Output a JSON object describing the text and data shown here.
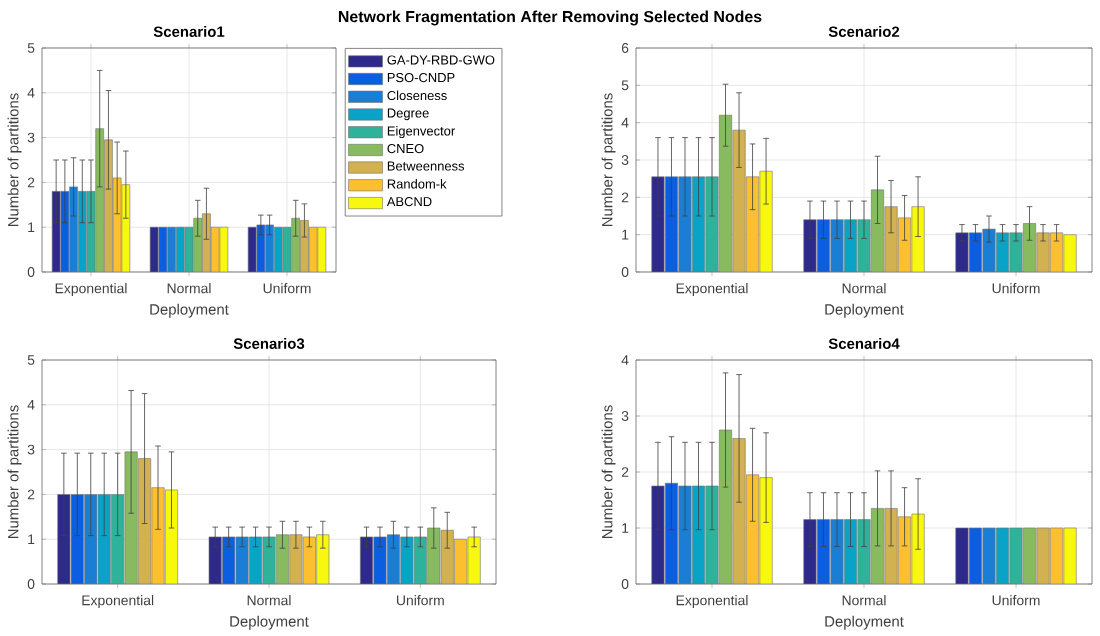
{
  "chart_data": [
    {
      "type": "bar",
      "title": "Scenario1",
      "xlabel": "Deployment",
      "ylabel": "Number of partitions",
      "annotations": [
        "Network Fragmentation After Removing Selected Nodes"
      ],
      "categories": [
        "Exponential",
        "Normal",
        "Uniform"
      ],
      "ylim": [
        0,
        5
      ],
      "yticks": [
        0,
        1,
        2,
        3,
        4,
        5
      ],
      "grid": true,
      "legend": "right",
      "series": [
        {
          "name": "GA-DY-RBD-GWO",
          "color": "#2e2a8c",
          "values": [
            1.8,
            1.0,
            1.0
          ],
          "errors": [
            0.7,
            null,
            null
          ]
        },
        {
          "name": "PSO-CNDP",
          "color": "#0b5ee0",
          "values": [
            1.8,
            1.0,
            1.05
          ],
          "errors": [
            0.7,
            null,
            0.22
          ]
        },
        {
          "name": "Closeness",
          "color": "#1a7fd4",
          "values": [
            1.9,
            1.0,
            1.05
          ],
          "errors": [
            0.65,
            null,
            0.22
          ]
        },
        {
          "name": "Degree",
          "color": "#0aa3c8",
          "values": [
            1.8,
            1.0,
            1.0
          ],
          "errors": [
            0.7,
            null,
            null
          ]
        },
        {
          "name": "Eigenvector",
          "color": "#2eb39a",
          "values": [
            1.8,
            1.0,
            1.0
          ],
          "errors": [
            0.7,
            null,
            null
          ]
        },
        {
          "name": "CNEO",
          "color": "#88bb5f",
          "values": [
            3.2,
            1.2,
            1.2
          ],
          "errors": [
            1.3,
            0.4,
            0.4
          ]
        },
        {
          "name": "Betweenness",
          "color": "#d1b150",
          "values": [
            2.95,
            1.3,
            1.15
          ],
          "errors": [
            1.1,
            0.57,
            0.37
          ]
        },
        {
          "name": "Random-k",
          "color": "#fcc02e",
          "values": [
            2.1,
            1.0,
            1.0
          ],
          "errors": [
            0.8,
            null,
            null
          ]
        },
        {
          "name": "ABCND",
          "color": "#f8f80f",
          "values": [
            1.95,
            1.0,
            1.0
          ],
          "errors": [
            0.75,
            null,
            null
          ]
        }
      ]
    },
    {
      "type": "bar",
      "title": "Scenario2",
      "xlabel": "Deployment",
      "ylabel": "Number of partitions",
      "categories": [
        "Exponential",
        "Normal",
        "Uniform"
      ],
      "ylim": [
        0,
        6
      ],
      "yticks": [
        0,
        1,
        2,
        3,
        4,
        5,
        6
      ],
      "grid": true,
      "series": [
        {
          "color": "#2e2a8c",
          "values": [
            2.55,
            1.4,
            1.05
          ],
          "errors": [
            1.05,
            0.5,
            0.22
          ]
        },
        {
          "color": "#0b5ee0",
          "values": [
            2.55,
            1.4,
            1.05
          ],
          "errors": [
            1.05,
            0.5,
            0.22
          ]
        },
        {
          "color": "#1a7fd4",
          "values": [
            2.55,
            1.4,
            1.15
          ],
          "errors": [
            1.05,
            0.5,
            0.35
          ]
        },
        {
          "color": "#0aa3c8",
          "values": [
            2.55,
            1.4,
            1.05
          ],
          "errors": [
            1.05,
            0.5,
            0.22
          ]
        },
        {
          "color": "#2eb39a",
          "values": [
            2.55,
            1.4,
            1.05
          ],
          "errors": [
            1.05,
            0.5,
            0.22
          ]
        },
        {
          "color": "#88bb5f",
          "values": [
            4.2,
            2.2,
            1.3
          ],
          "errors": [
            0.83,
            0.9,
            0.45
          ]
        },
        {
          "color": "#d1b150",
          "values": [
            3.8,
            1.75,
            1.05
          ],
          "errors": [
            1.0,
            0.7,
            0.22
          ]
        },
        {
          "color": "#fcc02e",
          "values": [
            2.55,
            1.45,
            1.05
          ],
          "errors": [
            0.88,
            0.6,
            0.22
          ]
        },
        {
          "color": "#f8f80f",
          "values": [
            2.7,
            1.75,
            1.0
          ],
          "errors": [
            0.88,
            0.8,
            null
          ]
        }
      ]
    },
    {
      "type": "bar",
      "title": "Scenario3",
      "xlabel": "Deployment",
      "ylabel": "Number of partitions",
      "categories": [
        "Exponential",
        "Normal",
        "Uniform"
      ],
      "ylim": [
        0,
        5
      ],
      "yticks": [
        0,
        1,
        2,
        3,
        4,
        5
      ],
      "grid": true,
      "series": [
        {
          "color": "#2e2a8c",
          "values": [
            2.0,
            1.05,
            1.05
          ],
          "errors": [
            0.92,
            0.22,
            0.22
          ]
        },
        {
          "color": "#0b5ee0",
          "values": [
            2.0,
            1.05,
            1.05
          ],
          "errors": [
            0.92,
            0.22,
            0.22
          ]
        },
        {
          "color": "#1a7fd4",
          "values": [
            2.0,
            1.05,
            1.1
          ],
          "errors": [
            0.92,
            0.22,
            0.3
          ]
        },
        {
          "color": "#0aa3c8",
          "values": [
            2.0,
            1.05,
            1.05
          ],
          "errors": [
            0.92,
            0.22,
            0.22
          ]
        },
        {
          "color": "#2eb39a",
          "values": [
            2.0,
            1.05,
            1.05
          ],
          "errors": [
            0.92,
            0.22,
            0.22
          ]
        },
        {
          "color": "#88bb5f",
          "values": [
            2.95,
            1.1,
            1.25
          ],
          "errors": [
            1.37,
            0.3,
            0.45
          ]
        },
        {
          "color": "#d1b150",
          "values": [
            2.8,
            1.1,
            1.2
          ],
          "errors": [
            1.45,
            0.3,
            0.4
          ]
        },
        {
          "color": "#fcc02e",
          "values": [
            2.15,
            1.05,
            1.0
          ],
          "errors": [
            0.93,
            0.22,
            null
          ]
        },
        {
          "color": "#f8f80f",
          "values": [
            2.1,
            1.1,
            1.05
          ],
          "errors": [
            0.85,
            0.3,
            0.22
          ]
        }
      ]
    },
    {
      "type": "bar",
      "title": "Scenario4",
      "xlabel": "Deployment",
      "ylabel": "Number of partitions",
      "categories": [
        "Exponential",
        "Normal",
        "Uniform"
      ],
      "ylim": [
        0,
        4
      ],
      "yticks": [
        0,
        1,
        2,
        3,
        4
      ],
      "grid": true,
      "series": [
        {
          "color": "#2e2a8c",
          "values": [
            1.75,
            1.15,
            1.0
          ],
          "errors": [
            0.78,
            0.48,
            null
          ]
        },
        {
          "color": "#0b5ee0",
          "values": [
            1.8,
            1.15,
            1.0
          ],
          "errors": [
            0.83,
            0.48,
            null
          ]
        },
        {
          "color": "#1a7fd4",
          "values": [
            1.75,
            1.15,
            1.0
          ],
          "errors": [
            0.78,
            0.48,
            null
          ]
        },
        {
          "color": "#0aa3c8",
          "values": [
            1.75,
            1.15,
            1.0
          ],
          "errors": [
            0.78,
            0.48,
            null
          ]
        },
        {
          "color": "#2eb39a",
          "values": [
            1.75,
            1.15,
            1.0
          ],
          "errors": [
            0.78,
            0.48,
            null
          ]
        },
        {
          "color": "#88bb5f",
          "values": [
            2.75,
            1.35,
            1.0
          ],
          "errors": [
            1.02,
            0.67,
            null
          ]
        },
        {
          "color": "#d1b150",
          "values": [
            2.6,
            1.35,
            1.0
          ],
          "errors": [
            1.14,
            0.67,
            null
          ]
        },
        {
          "color": "#fcc02e",
          "values": [
            1.95,
            1.2,
            1.0
          ],
          "errors": [
            0.83,
            0.52,
            null
          ]
        },
        {
          "color": "#f8f80f",
          "values": [
            1.9,
            1.25,
            1.0
          ],
          "errors": [
            0.8,
            0.63,
            null
          ]
        }
      ]
    }
  ]
}
